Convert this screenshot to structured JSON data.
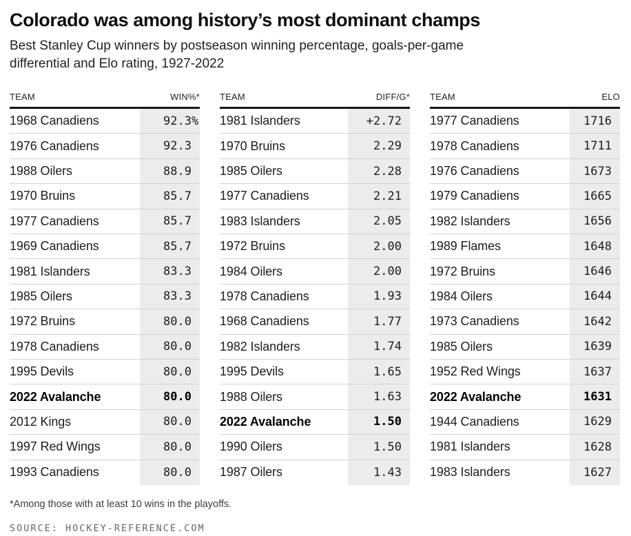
{
  "header": {
    "title": "Colorado was among history’s most dominant champs",
    "subtitle_line1": "Best Stanley Cup winners by postseason winning percentage, goals-per-game",
    "subtitle_line2": "differential and Elo rating, 1927-2022"
  },
  "tables": [
    {
      "name": "win-pct",
      "col_team": "TEAM",
      "col_value": "WIN%*",
      "rows": [
        {
          "team": "1968 Canadiens",
          "value": "92.3",
          "suffix": "%"
        },
        {
          "team": "1976 Canadiens",
          "value": "92.3"
        },
        {
          "team": "1988 Oilers",
          "value": "88.9"
        },
        {
          "team": "1970 Bruins",
          "value": "85.7"
        },
        {
          "team": "1977 Canadiens",
          "value": "85.7"
        },
        {
          "team": "1969 Canadiens",
          "value": "85.7"
        },
        {
          "team": "1981 Islanders",
          "value": "83.3"
        },
        {
          "team": "1985 Oilers",
          "value": "83.3"
        },
        {
          "team": "1972 Bruins",
          "value": "80.0"
        },
        {
          "team": "1978 Canadiens",
          "value": "80.0"
        },
        {
          "team": "1995 Devils",
          "value": "80.0"
        },
        {
          "team": "2022 Avalanche",
          "value": "80.0",
          "bold": true
        },
        {
          "team": "2012 Kings",
          "value": "80.0"
        },
        {
          "team": "1997 Red Wings",
          "value": "80.0"
        },
        {
          "team": "1993 Canadiens",
          "value": "80.0"
        }
      ]
    },
    {
      "name": "diff-per-game",
      "col_team": "TEAM",
      "col_value": "DIFF/G*",
      "rows": [
        {
          "team": "1981 Islanders",
          "prefix": "+",
          "value": "2.72"
        },
        {
          "team": "1970 Bruins",
          "value": "2.29"
        },
        {
          "team": "1985 Oilers",
          "value": "2.28"
        },
        {
          "team": "1977 Canadiens",
          "value": "2.21"
        },
        {
          "team": "1983 Islanders",
          "value": "2.05"
        },
        {
          "team": "1972 Bruins",
          "value": "2.00"
        },
        {
          "team": "1984 Oilers",
          "value": "2.00"
        },
        {
          "team": "1978 Canadiens",
          "value": "1.93"
        },
        {
          "team": "1968 Canadiens",
          "value": "1.77"
        },
        {
          "team": "1982 Islanders",
          "value": "1.74"
        },
        {
          "team": "1995 Devils",
          "value": "1.65"
        },
        {
          "team": "1988 Oilers",
          "value": "1.63"
        },
        {
          "team": "2022 Avalanche",
          "value": "1.50",
          "bold": true
        },
        {
          "team": "1990 Oilers",
          "value": "1.50"
        },
        {
          "team": "1987 Oilers",
          "value": "1.43"
        }
      ]
    },
    {
      "name": "elo",
      "col_team": "TEAM",
      "col_value": "ELO",
      "rows": [
        {
          "team": "1977 Canadiens",
          "value": "1716"
        },
        {
          "team": "1978 Canadiens",
          "value": "1711"
        },
        {
          "team": "1976 Canadiens",
          "value": "1673"
        },
        {
          "team": "1979 Canadiens",
          "value": "1665"
        },
        {
          "team": "1982 Islanders",
          "value": "1656"
        },
        {
          "team": "1989 Flames",
          "value": "1648"
        },
        {
          "team": "1972 Bruins",
          "value": "1646"
        },
        {
          "team": "1984 Oilers",
          "value": "1644"
        },
        {
          "team": "1973 Canadiens",
          "value": "1642"
        },
        {
          "team": "1985 Oilers",
          "value": "1639"
        },
        {
          "team": "1952 Red Wings",
          "value": "1637"
        },
        {
          "team": "2022 Avalanche",
          "value": "1631",
          "bold": true
        },
        {
          "team": "1944 Canadiens",
          "value": "1629"
        },
        {
          "team": "1981 Islanders",
          "value": "1628"
        },
        {
          "team": "1983 Islanders",
          "value": "1627"
        }
      ]
    }
  ],
  "footer": {
    "footnote": "*Among those with at least 10 wins in the playoffs.",
    "source": "SOURCE: HOCKEY-REFERENCE.COM"
  },
  "colors": {
    "value_column_bg": "#ececec",
    "row_divider": "#d2d2d2",
    "header_rule": "#161616",
    "text": "#222222",
    "source_text": "#666666"
  },
  "highlighted_team": "2022 Avalanche",
  "chart_data": [
    {
      "type": "table",
      "title": "Best Stanley Cup winners by postseason winning percentage",
      "columns": [
        "TEAM",
        "WIN%*"
      ],
      "value_unit": "percent",
      "rows": [
        [
          "1968 Canadiens",
          92.3
        ],
        [
          "1976 Canadiens",
          92.3
        ],
        [
          "1988 Oilers",
          88.9
        ],
        [
          "1970 Bruins",
          85.7
        ],
        [
          "1977 Canadiens",
          85.7
        ],
        [
          "1969 Canadiens",
          85.7
        ],
        [
          "1981 Islanders",
          83.3
        ],
        [
          "1985 Oilers",
          83.3
        ],
        [
          "1972 Bruins",
          80.0
        ],
        [
          "1978 Canadiens",
          80.0
        ],
        [
          "1995 Devils",
          80.0
        ],
        [
          "2022 Avalanche",
          80.0
        ],
        [
          "2012 Kings",
          80.0
        ],
        [
          "1997 Red Wings",
          80.0
        ],
        [
          "1993 Canadiens",
          80.0
        ]
      ]
    },
    {
      "type": "table",
      "title": "Best Stanley Cup winners by goals-per-game differential",
      "columns": [
        "TEAM",
        "DIFF/G*"
      ],
      "value_unit": "goals per game",
      "rows": [
        [
          "1981 Islanders",
          2.72
        ],
        [
          "1970 Bruins",
          2.29
        ],
        [
          "1985 Oilers",
          2.28
        ],
        [
          "1977 Canadiens",
          2.21
        ],
        [
          "1983 Islanders",
          2.05
        ],
        [
          "1972 Bruins",
          2.0
        ],
        [
          "1984 Oilers",
          2.0
        ],
        [
          "1978 Canadiens",
          1.93
        ],
        [
          "1968 Canadiens",
          1.77
        ],
        [
          "1982 Islanders",
          1.74
        ],
        [
          "1995 Devils",
          1.65
        ],
        [
          "1988 Oilers",
          1.63
        ],
        [
          "2022 Avalanche",
          1.5
        ],
        [
          "1990 Oilers",
          1.5
        ],
        [
          "1987 Oilers",
          1.43
        ]
      ]
    },
    {
      "type": "table",
      "title": "Best Stanley Cup winners by Elo rating",
      "columns": [
        "TEAM",
        "ELO"
      ],
      "value_unit": "elo rating",
      "rows": [
        [
          "1977 Canadiens",
          1716
        ],
        [
          "1978 Canadiens",
          1711
        ],
        [
          "1976 Canadiens",
          1673
        ],
        [
          "1979 Canadiens",
          1665
        ],
        [
          "1982 Islanders",
          1656
        ],
        [
          "1989 Flames",
          1648
        ],
        [
          "1972 Bruins",
          1646
        ],
        [
          "1984 Oilers",
          1644
        ],
        [
          "1973 Canadiens",
          1642
        ],
        [
          "1985 Oilers",
          1639
        ],
        [
          "1952 Red Wings",
          1637
        ],
        [
          "2022 Avalanche",
          1631
        ],
        [
          "1944 Canadiens",
          1629
        ],
        [
          "1981 Islanders",
          1628
        ],
        [
          "1983 Islanders",
          1627
        ]
      ]
    }
  ]
}
